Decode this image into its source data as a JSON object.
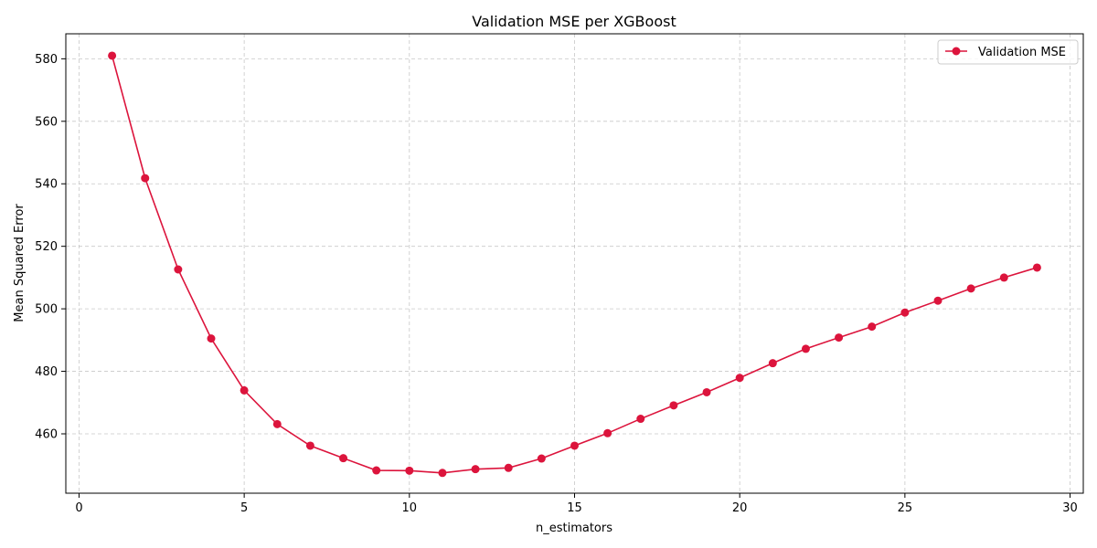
{
  "chart_data": {
    "type": "line",
    "title": "Validation MSE per XGBoost",
    "xlabel": "n_estimators",
    "ylabel": "Mean Squared Error",
    "xlim": [
      -0.4,
      30.4
    ],
    "ylim": [
      441,
      588
    ],
    "xticks": [
      0,
      5,
      10,
      15,
      20,
      25,
      30
    ],
    "yticks": [
      460,
      480,
      500,
      520,
      540,
      560,
      580
    ],
    "grid": true,
    "legend_position": "top-right",
    "series": [
      {
        "name": "Validation MSE",
        "color": "#dc143c",
        "marker": "circle",
        "x": [
          1,
          2,
          3,
          4,
          5,
          6,
          7,
          8,
          9,
          10,
          11,
          12,
          13,
          14,
          15,
          16,
          17,
          18,
          19,
          20,
          21,
          22,
          23,
          24,
          25,
          26,
          27,
          28,
          29
        ],
        "y": [
          581.0,
          541.8,
          512.6,
          490.5,
          473.9,
          463.1,
          456.2,
          452.2,
          448.3,
          448.2,
          447.5,
          448.7,
          449.1,
          452.1,
          456.2,
          460.2,
          464.8,
          469.1,
          473.3,
          477.9,
          482.6,
          487.2,
          490.8,
          494.3,
          498.8,
          502.6,
          506.5,
          510.0,
          513.2
        ]
      }
    ]
  }
}
